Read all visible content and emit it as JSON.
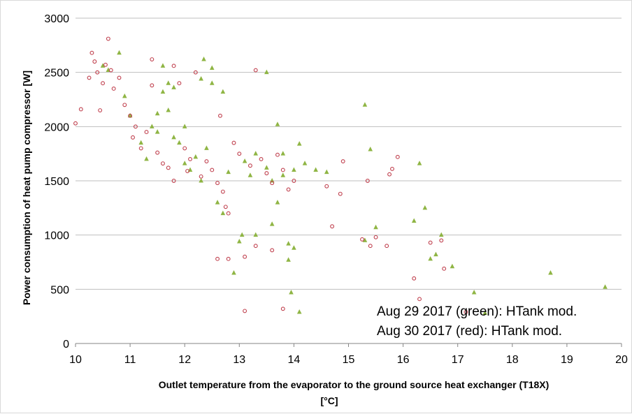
{
  "chart_data": {
    "type": "scatter",
    "xlabel": "Outlet temperature from the evaporator to the ground source heat exchanger  (T18X)",
    "xlabel_unit": "[°C]",
    "ylabel": "Power consumption of heat pump compressor [W]",
    "xlim": [
      10,
      20
    ],
    "ylim": [
      0,
      3000
    ],
    "xticks": [
      "10",
      "11",
      "12",
      "13",
      "14",
      "15",
      "16",
      "17",
      "18",
      "19",
      "20"
    ],
    "yticks": [
      "0",
      "500",
      "1000",
      "1500",
      "2000",
      "2500",
      "3000"
    ],
    "grid": "horizontal",
    "annotations": [
      "Aug 29 2017 (green): HTank mod.",
      "Aug 30 2017 (red): HTank mod."
    ],
    "series": [
      {
        "marker": "triangle",
        "color": "#8fb544",
        "points": [
          [
            10.5,
            2560
          ],
          [
            10.6,
            2520
          ],
          [
            10.8,
            2680
          ],
          [
            10.9,
            2280
          ],
          [
            11.0,
            2100
          ],
          [
            11.2,
            1850
          ],
          [
            11.3,
            1700
          ],
          [
            11.4,
            2000
          ],
          [
            11.5,
            2120
          ],
          [
            11.5,
            1950
          ],
          [
            11.6,
            2560
          ],
          [
            11.6,
            2320
          ],
          [
            11.7,
            2400
          ],
          [
            11.7,
            2150
          ],
          [
            11.8,
            2360
          ],
          [
            11.8,
            1900
          ],
          [
            11.9,
            1850
          ],
          [
            12.0,
            2000
          ],
          [
            12.0,
            1660
          ],
          [
            12.1,
            1600
          ],
          [
            12.2,
            1720
          ],
          [
            12.3,
            2440
          ],
          [
            12.3,
            1500
          ],
          [
            12.35,
            2620
          ],
          [
            12.4,
            1800
          ],
          [
            12.5,
            2540
          ],
          [
            12.5,
            2400
          ],
          [
            12.6,
            1300
          ],
          [
            12.7,
            2320
          ],
          [
            12.7,
            1200
          ],
          [
            12.8,
            1580
          ],
          [
            12.9,
            650
          ],
          [
            13.0,
            940
          ],
          [
            13.05,
            1000
          ],
          [
            13.1,
            1680
          ],
          [
            13.2,
            1550
          ],
          [
            13.3,
            1750
          ],
          [
            13.3,
            1000
          ],
          [
            13.5,
            2500
          ],
          [
            13.5,
            1620
          ],
          [
            13.6,
            1500
          ],
          [
            13.6,
            1100
          ],
          [
            13.7,
            2020
          ],
          [
            13.7,
            1300
          ],
          [
            13.8,
            1750
          ],
          [
            13.8,
            1550
          ],
          [
            13.9,
            920
          ],
          [
            13.9,
            770
          ],
          [
            13.95,
            470
          ],
          [
            14.0,
            1600
          ],
          [
            14.0,
            880
          ],
          [
            14.1,
            1840
          ],
          [
            14.1,
            290
          ],
          [
            14.2,
            1660
          ],
          [
            14.4,
            1600
          ],
          [
            14.6,
            1580
          ],
          [
            15.3,
            2200
          ],
          [
            15.3,
            950
          ],
          [
            15.4,
            1790
          ],
          [
            15.5,
            1070
          ],
          [
            16.2,
            1130
          ],
          [
            16.3,
            1660
          ],
          [
            16.4,
            1250
          ],
          [
            16.5,
            780
          ],
          [
            16.6,
            820
          ],
          [
            16.7,
            1000
          ],
          [
            16.9,
            710
          ],
          [
            17.3,
            470
          ],
          [
            17.5,
            280
          ],
          [
            18.7,
            650
          ],
          [
            19.7,
            520
          ]
        ]
      },
      {
        "marker": "circle",
        "color": "#c0404e",
        "points": [
          [
            10.0,
            2030
          ],
          [
            10.1,
            2160
          ],
          [
            10.25,
            2450
          ],
          [
            10.3,
            2680
          ],
          [
            10.35,
            2600
          ],
          [
            10.4,
            2500
          ],
          [
            10.45,
            2150
          ],
          [
            10.5,
            2400
          ],
          [
            10.55,
            2570
          ],
          [
            10.6,
            2810
          ],
          [
            10.65,
            2520
          ],
          [
            10.7,
            2350
          ],
          [
            10.8,
            2450
          ],
          [
            10.9,
            2200
          ],
          [
            11.0,
            2100
          ],
          [
            11.05,
            1900
          ],
          [
            11.1,
            2000
          ],
          [
            11.2,
            1800
          ],
          [
            11.3,
            1950
          ],
          [
            11.4,
            2620
          ],
          [
            11.4,
            2380
          ],
          [
            11.5,
            1760
          ],
          [
            11.6,
            1660
          ],
          [
            11.7,
            1620
          ],
          [
            11.8,
            2560
          ],
          [
            11.8,
            1500
          ],
          [
            11.9,
            2400
          ],
          [
            12.0,
            1800
          ],
          [
            12.05,
            1590
          ],
          [
            12.1,
            1700
          ],
          [
            12.2,
            2500
          ],
          [
            12.3,
            1540
          ],
          [
            12.4,
            1680
          ],
          [
            12.5,
            1600
          ],
          [
            12.6,
            1480
          ],
          [
            12.65,
            2100
          ],
          [
            12.7,
            1400
          ],
          [
            12.75,
            1260
          ],
          [
            12.6,
            780
          ],
          [
            12.8,
            1200
          ],
          [
            12.8,
            780
          ],
          [
            12.9,
            1850
          ],
          [
            13.0,
            1750
          ],
          [
            13.1,
            800
          ],
          [
            13.1,
            300
          ],
          [
            13.2,
            1640
          ],
          [
            13.3,
            2520
          ],
          [
            13.3,
            900
          ],
          [
            13.4,
            1700
          ],
          [
            13.5,
            1570
          ],
          [
            13.6,
            1480
          ],
          [
            13.6,
            860
          ],
          [
            13.7,
            1740
          ],
          [
            13.8,
            1600
          ],
          [
            13.8,
            320
          ],
          [
            13.9,
            1420
          ],
          [
            14.0,
            1500
          ],
          [
            14.6,
            1450
          ],
          [
            14.7,
            1080
          ],
          [
            14.85,
            1380
          ],
          [
            14.9,
            1680
          ],
          [
            15.25,
            960
          ],
          [
            15.35,
            1500
          ],
          [
            15.4,
            900
          ],
          [
            15.5,
            980
          ],
          [
            15.7,
            900
          ],
          [
            15.75,
            1560
          ],
          [
            15.8,
            1610
          ],
          [
            15.9,
            1720
          ],
          [
            16.2,
            600
          ],
          [
            16.3,
            410
          ],
          [
            16.5,
            930
          ],
          [
            16.7,
            950
          ],
          [
            16.75,
            690
          ],
          [
            17.15,
            290
          ]
        ]
      }
    ]
  }
}
